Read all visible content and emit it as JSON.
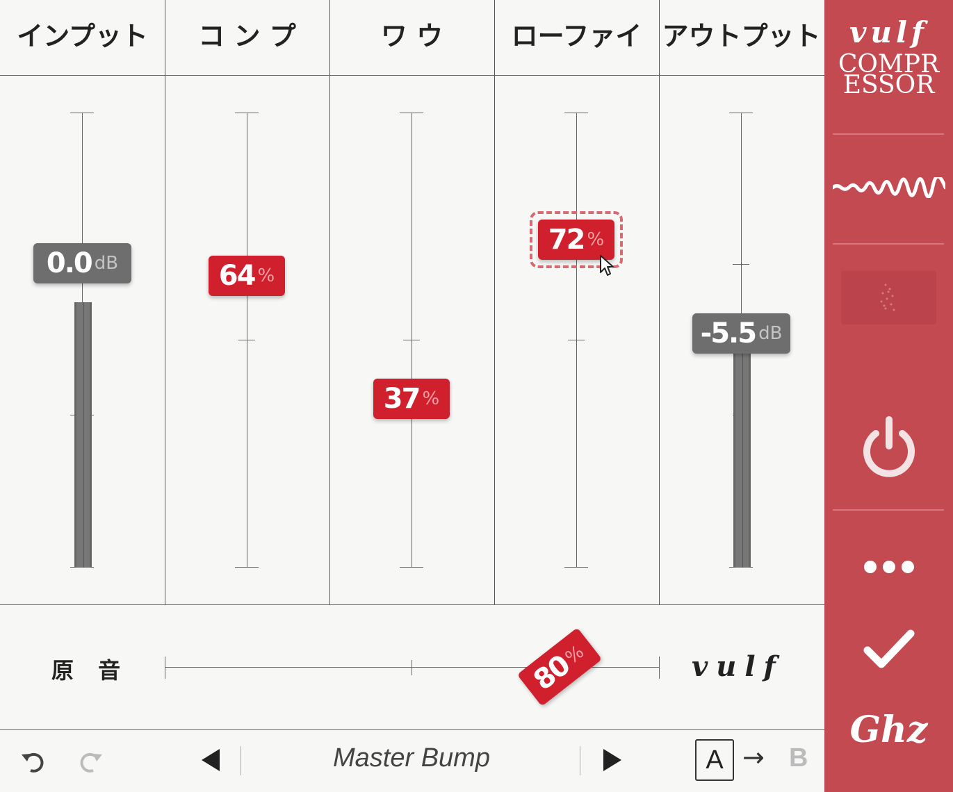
{
  "columns": [
    {
      "title": "インプット",
      "value": "0.0",
      "unit": "dB",
      "style": "gray"
    },
    {
      "title": "コ ン プ",
      "value": "64",
      "unit": "%",
      "style": "red"
    },
    {
      "title": "ワ ウ",
      "value": "37",
      "unit": "%",
      "style": "red"
    },
    {
      "title": "ローファイ",
      "value": "72",
      "unit": "%",
      "style": "red"
    },
    {
      "title": "アウトプット",
      "value": "-5.5",
      "unit": "dB",
      "style": "gray"
    }
  ],
  "mix": {
    "left_label": "原 音",
    "right_label": "vulf",
    "value": "80",
    "unit": "%"
  },
  "sidebar": {
    "logo_script": "vulf",
    "logo_line1": "COMPR",
    "logo_line2": "ESSOR",
    "brand": "Ghz"
  },
  "bottom": {
    "preset_name": "Master Bump",
    "ab_a": "A",
    "ab_arrow": "→",
    "ab_b": "B"
  },
  "colors": {
    "accent_red": "#d0202e",
    "sidebar": "#c44a52",
    "gray_badge": "#6e6e6e"
  }
}
